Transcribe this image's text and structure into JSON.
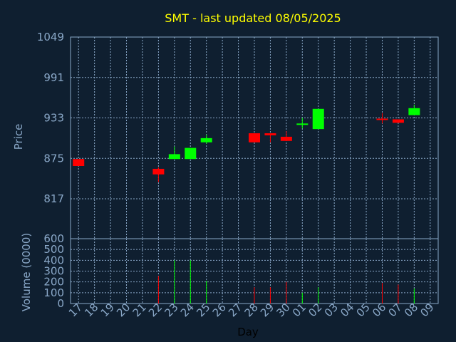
{
  "title": "SMT - last updated 08/05/2025",
  "colors": {
    "background": "#0f1f30",
    "up": "#00ff00",
    "down": "#ff0000",
    "title": "#ffff00",
    "axis": "#8aa8c8"
  },
  "chart_data": {
    "type": "candlestick",
    "title": "SMT - last updated 08/05/2025",
    "xlabel": "Day",
    "price": {
      "ylabel": "Price",
      "ylim": [
        817,
        1049
      ],
      "ticks": [
        "1049",
        "991",
        "933",
        "875",
        "817"
      ],
      "bottom_tick": "600",
      "grid": true
    },
    "volume": {
      "ylabel": "Volume (0000)",
      "ylim": [
        0,
        600
      ],
      "ticks": [
        "0",
        "100",
        "200",
        "300",
        "400",
        "500"
      ]
    },
    "categories": [
      "17",
      "18",
      "19",
      "20",
      "21",
      "22",
      "23",
      "24",
      "25",
      "26",
      "27",
      "28",
      "29",
      "30",
      "01",
      "02",
      "03",
      "04",
      "05",
      "06",
      "07",
      "08",
      "09"
    ],
    "candles": [
      {
        "day": "17",
        "open": 874,
        "close": 864,
        "high": 874,
        "low": 864,
        "volume": 0
      },
      {
        "day": "22",
        "open": 860,
        "close": 852,
        "high": 862,
        "low": 841,
        "volume": 255
      },
      {
        "day": "23",
        "open": 874,
        "close": 881,
        "high": 892,
        "low": 874,
        "volume": 400
      },
      {
        "day": "24",
        "open": 874,
        "close": 890,
        "high": 890,
        "low": 874,
        "volume": 400
      },
      {
        "day": "25",
        "open": 898,
        "close": 904,
        "high": 909,
        "low": 896,
        "volume": 210
      },
      {
        "day": "28",
        "open": 911,
        "close": 898,
        "high": 911,
        "low": 898,
        "volume": 150
      },
      {
        "day": "29",
        "open": 911,
        "close": 908,
        "high": 911,
        "low": 898,
        "volume": 150
      },
      {
        "day": "30",
        "open": 906,
        "close": 900,
        "high": 914,
        "low": 900,
        "volume": 200
      },
      {
        "day": "01",
        "open": 923,
        "close": 925,
        "high": 933,
        "low": 918,
        "volume": 100
      },
      {
        "day": "02",
        "open": 917,
        "close": 946,
        "high": 946,
        "low": 917,
        "volume": 150
      },
      {
        "day": "06",
        "open": 932,
        "close": 930,
        "high": 940,
        "low": 925,
        "volume": 190
      },
      {
        "day": "07",
        "open": 931,
        "close": 926,
        "high": 931,
        "low": 926,
        "volume": 175
      },
      {
        "day": "08",
        "open": 937,
        "close": 947,
        "high": 952,
        "low": 937,
        "volume": 140
      }
    ]
  }
}
